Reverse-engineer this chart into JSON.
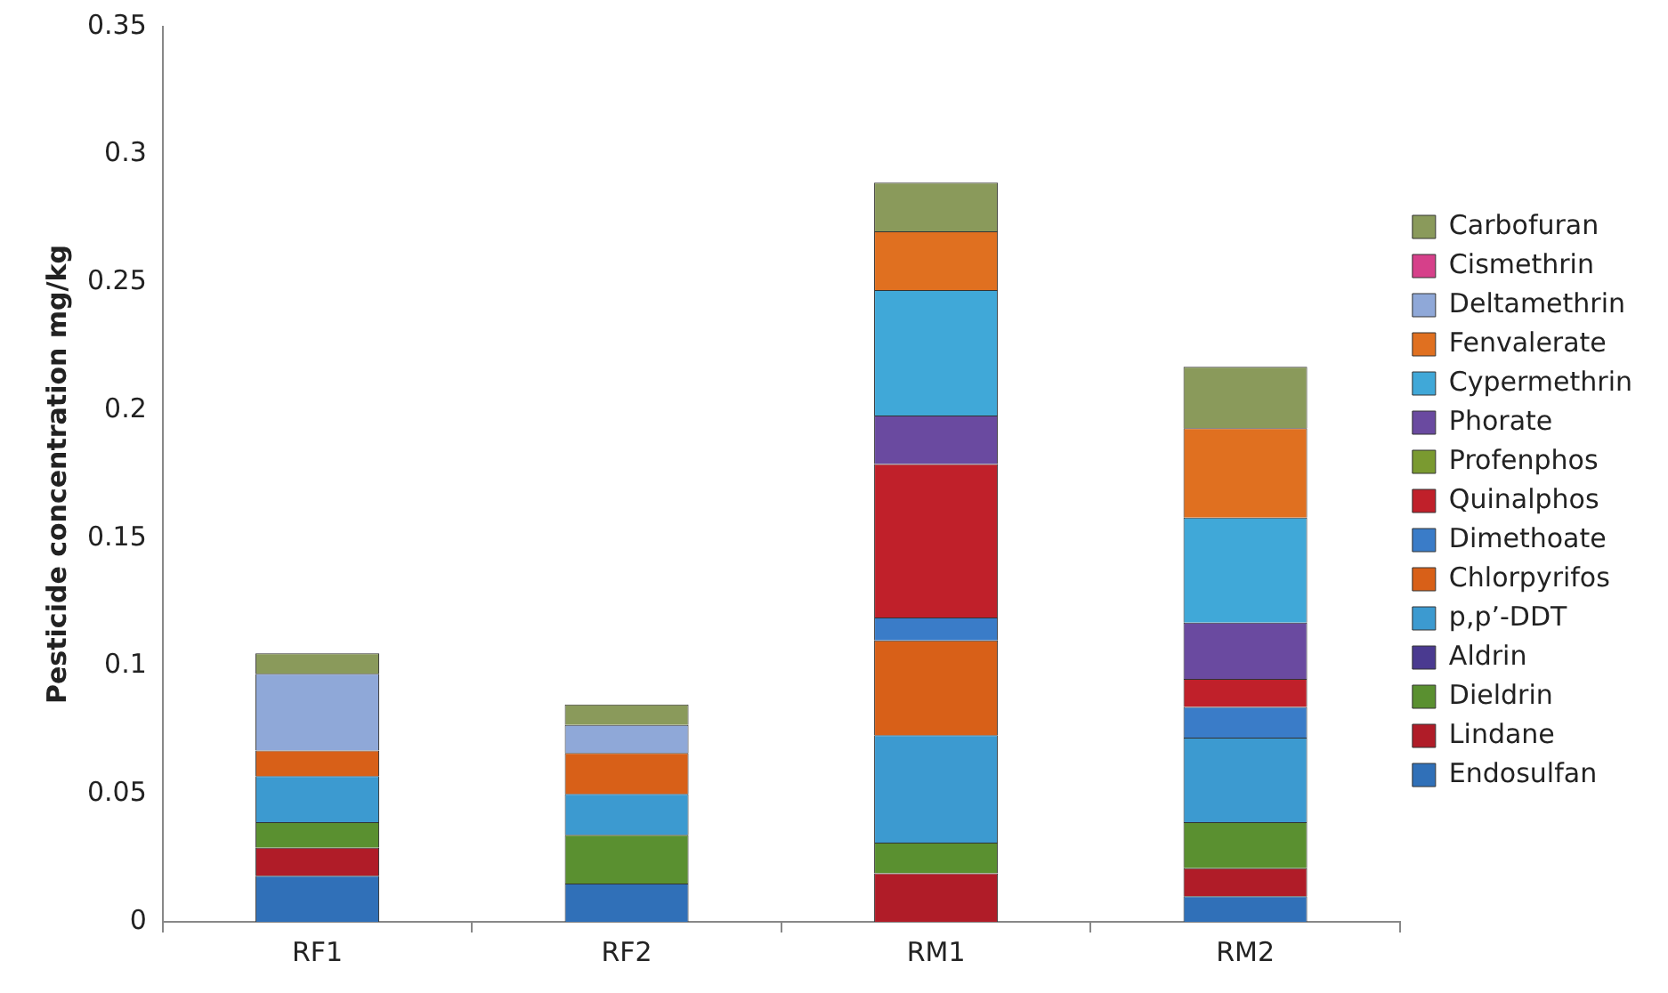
{
  "chart_data": {
    "type": "bar",
    "stacked": true,
    "ylabel": "Pesticide concentration mg/kg",
    "categories": [
      "RF1",
      "RF2",
      "RM1",
      "RM2"
    ],
    "ylim": [
      0,
      0.35
    ],
    "yticks": [
      0,
      0.05,
      0.1,
      0.15,
      0.2,
      0.25,
      0.3,
      0.35
    ],
    "grid": false,
    "legend": "right",
    "series": [
      {
        "name": "Endosulfan",
        "color": "#3070b8",
        "values": [
          0.018,
          0.015,
          null,
          0.01
        ]
      },
      {
        "name": "Lindane",
        "color": "#b01c28",
        "values": [
          0.011,
          null,
          0.019,
          0.011
        ]
      },
      {
        "name": "Dieldrin",
        "color": "#5a9030",
        "values": [
          0.01,
          0.019,
          0.012,
          0.018
        ]
      },
      {
        "name": "Aldrin",
        "color": "#4a3a90",
        "values": [
          null,
          null,
          null,
          null
        ]
      },
      {
        "name": "p,p’-DDT",
        "color": "#3c9ad0",
        "values": [
          0.018,
          0.016,
          0.042,
          0.033
        ]
      },
      {
        "name": "Chlorpyrifos",
        "color": "#d86018",
        "values": [
          0.01,
          0.016,
          0.037,
          null
        ]
      },
      {
        "name": "Dimethoate",
        "color": "#3a7cc8",
        "values": [
          null,
          null,
          0.009,
          0.012
        ]
      },
      {
        "name": "Quinalphos",
        "color": "#c0202a",
        "values": [
          null,
          null,
          0.06,
          0.011
        ]
      },
      {
        "name": "Profenphos",
        "color": "#7a9a30",
        "values": [
          null,
          null,
          null,
          null
        ]
      },
      {
        "name": "Phorate",
        "color": "#6a4aa0",
        "values": [
          null,
          null,
          0.019,
          0.022
        ]
      },
      {
        "name": "Cypermethrin",
        "color": "#40a8d8",
        "values": [
          null,
          null,
          0.049,
          0.041
        ]
      },
      {
        "name": "Fenvalerate",
        "color": "#e07020",
        "values": [
          null,
          null,
          0.023,
          0.035
        ]
      },
      {
        "name": "Deltamethrin",
        "color": "#8fa8d8",
        "values": [
          0.03,
          0.011,
          null,
          null
        ]
      },
      {
        "name": "Cismethrin",
        "color": "#d6408a",
        "values": [
          null,
          null,
          null,
          null
        ]
      },
      {
        "name": "Carbofuran",
        "color": "#8a9a5b",
        "values": [
          0.008,
          0.008,
          0.019,
          0.024
        ]
      }
    ]
  }
}
